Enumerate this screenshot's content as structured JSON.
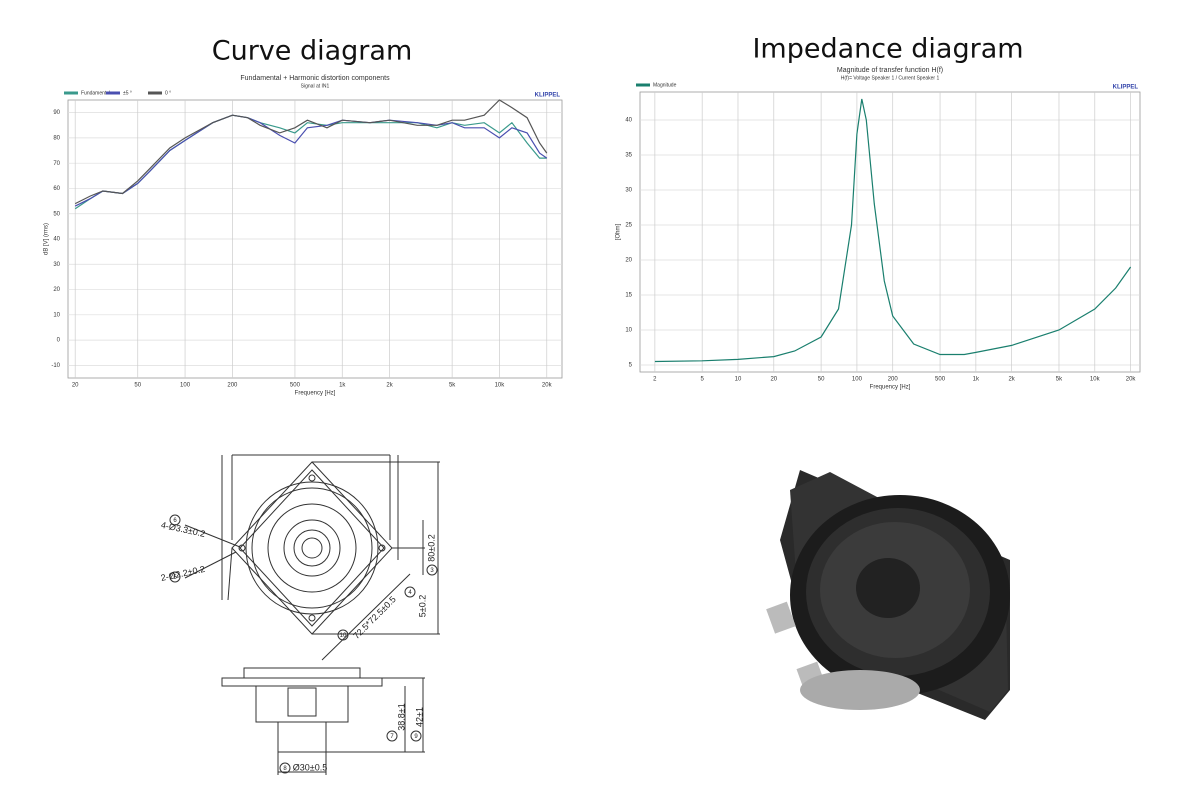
{
  "headings": [
    "Curve diagram",
    "Impedance diagram"
  ],
  "chart_data": [
    {
      "type": "line",
      "xscale": "log",
      "grid": true,
      "legend": "top-left",
      "title": "Fundamental + Harmonic distortion components",
      "subtitle": "Signal at IN1",
      "brand": "KLIPPEL",
      "xlabel": "Frequency [Hz]",
      "ylabel": "dB [V] (rms)",
      "x": [
        20,
        25,
        30,
        40,
        50,
        60,
        80,
        100,
        150,
        200,
        250,
        300,
        400,
        500,
        600,
        800,
        1000,
        1500,
        2000,
        3000,
        4000,
        5000,
        6000,
        8000,
        10000,
        12000,
        15000,
        18000,
        20000
      ],
      "series": [
        {
          "name": "Fundamental",
          "color": "#3a9a8c",
          "values": [
            52,
            56,
            59,
            58,
            62,
            67,
            75,
            79,
            86,
            89,
            88,
            86,
            84,
            82,
            86,
            85,
            86,
            86,
            86,
            86,
            84,
            86,
            85,
            86,
            82,
            86,
            78,
            72,
            72
          ]
        },
        {
          "name": "±5 °",
          "color": "#4a4fb0",
          "values": [
            53,
            56,
            59,
            58,
            62,
            67,
            75,
            79,
            86,
            89,
            88,
            86,
            81,
            78,
            84,
            85,
            87,
            86,
            87,
            86,
            85,
            86,
            84,
            84,
            80,
            84,
            82,
            74,
            72
          ]
        },
        {
          "name": "0 °",
          "color": "#555555",
          "values": [
            54,
            57,
            59,
            58,
            63,
            68,
            76,
            80,
            86,
            89,
            88,
            85,
            82,
            84,
            87,
            84,
            87,
            86,
            87,
            85,
            85,
            87,
            87,
            89,
            95,
            92,
            88,
            78,
            74
          ]
        }
      ],
      "xlim": [
        18,
        25000
      ],
      "ylim": [
        -15,
        95
      ],
      "xticks": [
        20,
        50,
        100,
        200,
        500,
        {
          "value": 1000,
          "label": "1k"
        },
        {
          "value": 2000,
          "label": "2k"
        },
        {
          "value": 5000,
          "label": "5k"
        },
        {
          "value": 10000,
          "label": "10k"
        },
        {
          "value": 20000,
          "label": "20k"
        }
      ],
      "yticks": [
        -10,
        0,
        10,
        20,
        30,
        40,
        50,
        60,
        70,
        80,
        90
      ]
    },
    {
      "type": "line",
      "xscale": "log",
      "grid": true,
      "legend": "top-left",
      "title": "Magnitude of transfer function H(f)",
      "subtitle": "H(f)= Voltage Speaker 1 / Current Speaker 1",
      "brand": "KLIPPEL",
      "xlabel": "Frequency [Hz]",
      "ylabel": "[Ohm]",
      "x": [
        2,
        5,
        10,
        20,
        30,
        50,
        70,
        90,
        100,
        110,
        120,
        140,
        170,
        200,
        300,
        500,
        800,
        1000,
        2000,
        5000,
        10000,
        15000,
        20000
      ],
      "series": [
        {
          "name": "Magnitude",
          "color": "#1a7f6e",
          "values": [
            5.5,
            5.6,
            5.8,
            6.2,
            7,
            9,
            13,
            25,
            38,
            43,
            40,
            28,
            17,
            12,
            8,
            6.5,
            6.5,
            6.8,
            7.8,
            10,
            13,
            16,
            19
          ]
        }
      ],
      "xlim": [
        1.5,
        24000
      ],
      "ylim": [
        4,
        44
      ],
      "xticks": [
        2,
        5,
        10,
        20,
        50,
        100,
        200,
        500,
        {
          "value": 1000,
          "label": "1k"
        },
        {
          "value": 2000,
          "label": "2k"
        },
        {
          "value": 5000,
          "label": "5k"
        },
        {
          "value": 10000,
          "label": "10k"
        },
        {
          "value": 20000,
          "label": "20k"
        }
      ],
      "yticks": [
        5,
        10,
        15,
        20,
        25,
        30,
        35,
        40
      ]
    }
  ],
  "drawing": {
    "labels": [
      {
        "num": "6",
        "text": "4-Ø3.3±0.2"
      },
      {
        "num": "5",
        "text": "2-Ø2.2±0.2"
      },
      {
        "num": "4",
        "text": "5±0.2"
      },
      {
        "num": "3",
        "text": "80±0.2"
      },
      {
        "num": "10",
        "text": "72.5*72.5±0.5"
      },
      {
        "num": "7",
        "text": "38.8±1"
      },
      {
        "num": "9",
        "text": "42±1"
      },
      {
        "num": "8",
        "text": "Ø30±0.5"
      }
    ]
  }
}
